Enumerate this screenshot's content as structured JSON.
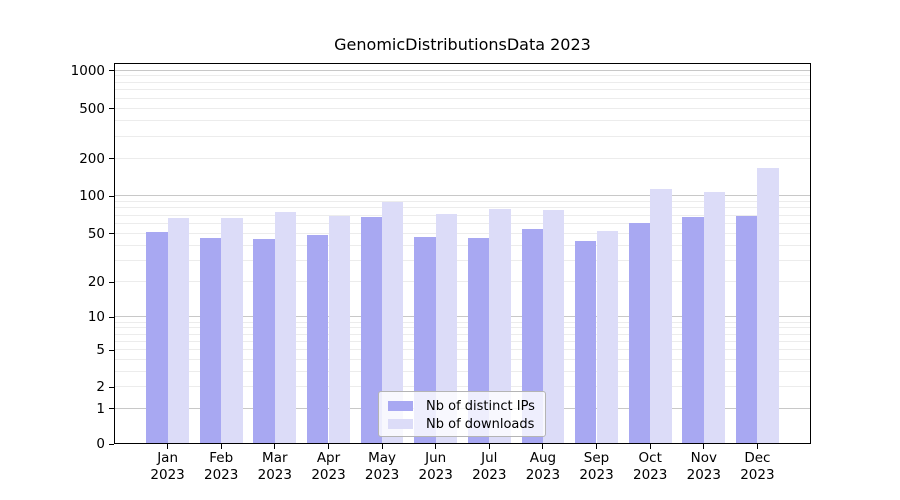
{
  "chart_data": {
    "type": "bar",
    "title": "GenomicDistributionsData 2023",
    "categories": [
      "Jan",
      "Feb",
      "Mar",
      "Apr",
      "May",
      "Jun",
      "Jul",
      "Aug",
      "Sep",
      "Oct",
      "Nov",
      "Dec"
    ],
    "x_year_label": "2023",
    "series": [
      {
        "name": "Nb of distinct IPs",
        "color": "#a8a8f2",
        "values": [
          52,
          46,
          45,
          49,
          68,
          47,
          46,
          55,
          44,
          61,
          68,
          69
        ]
      },
      {
        "name": "Nb of downloads",
        "color": "#dcdcf8",
        "values": [
          67,
          67,
          75,
          69,
          90,
          72,
          79,
          78,
          53,
          114,
          108,
          167
        ]
      }
    ],
    "yscale": "log-offset",
    "log_offset": 1.1,
    "yticks": [
      0,
      1,
      2,
      5,
      10,
      20,
      50,
      100,
      200,
      500,
      1000
    ],
    "ylim": [
      0,
      1150
    ],
    "grid": {
      "major_color": "#c8c8c8",
      "minor_color": "#ececec"
    },
    "legend_position": "lower center",
    "axis_color": "#000000",
    "background": "#ffffff"
  }
}
